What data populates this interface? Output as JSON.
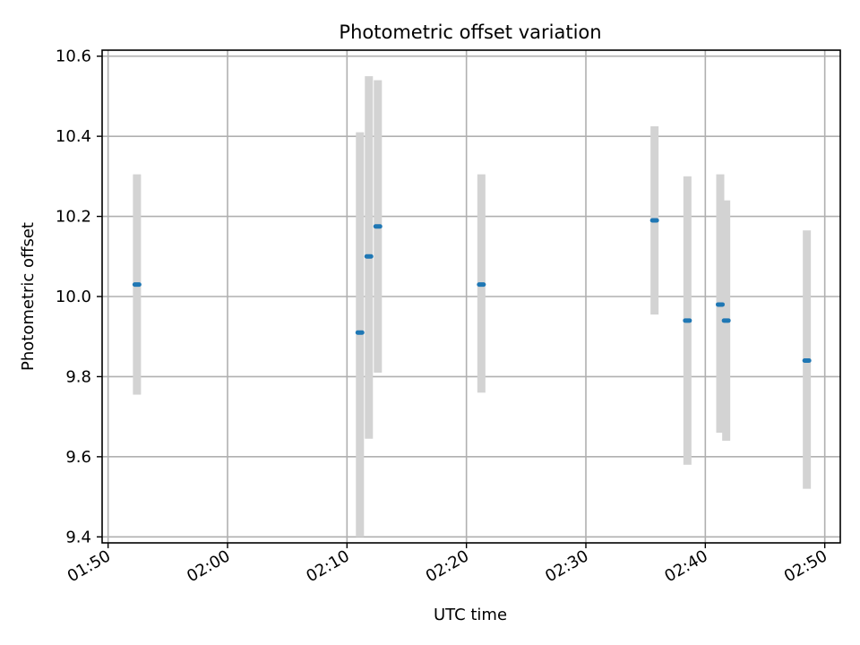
{
  "chart_data": {
    "type": "scatter",
    "title": "Photometric offset variation",
    "xlabel": "UTC time",
    "ylabel": "Photometric offset",
    "grid": true,
    "xlim": [
      "01:49.5",
      "02:51.3"
    ],
    "ylim": [
      9.385,
      10.615
    ],
    "x_ticks": [
      "01:50",
      "02:00",
      "02:10",
      "02:20",
      "02:30",
      "02:40",
      "02:50"
    ],
    "y_ticks": [
      "9.4",
      "9.6",
      "9.8",
      "10.0",
      "10.2",
      "10.4",
      "10.6"
    ],
    "colors": {
      "point": "#1f77b4",
      "errorbar": "#d3d3d3",
      "grid": "#b0b0b0",
      "axes": "#000000"
    },
    "points": [
      {
        "time": "01:52:25",
        "offset": 10.03,
        "err_low": 9.755,
        "err_high": 10.305
      },
      {
        "time": "02:11:05",
        "offset": 9.91,
        "err_low": 9.4,
        "err_high": 10.41
      },
      {
        "time": "02:11:50",
        "offset": 10.1,
        "err_low": 9.645,
        "err_high": 10.55
      },
      {
        "time": "02:12:35",
        "offset": 10.175,
        "err_low": 9.81,
        "err_high": 10.54
      },
      {
        "time": "02:21:15",
        "offset": 10.03,
        "err_low": 9.76,
        "err_high": 10.305
      },
      {
        "time": "02:35:45",
        "offset": 10.19,
        "err_low": 9.955,
        "err_high": 10.425
      },
      {
        "time": "02:38:30",
        "offset": 9.94,
        "err_low": 9.58,
        "err_high": 10.3
      },
      {
        "time": "02:41:15",
        "offset": 9.98,
        "err_low": 9.66,
        "err_high": 10.305
      },
      {
        "time": "02:41:45",
        "offset": 9.94,
        "err_low": 9.64,
        "err_high": 10.24
      },
      {
        "time": "02:48:30",
        "offset": 9.84,
        "err_low": 9.52,
        "err_high": 10.165
      }
    ]
  }
}
